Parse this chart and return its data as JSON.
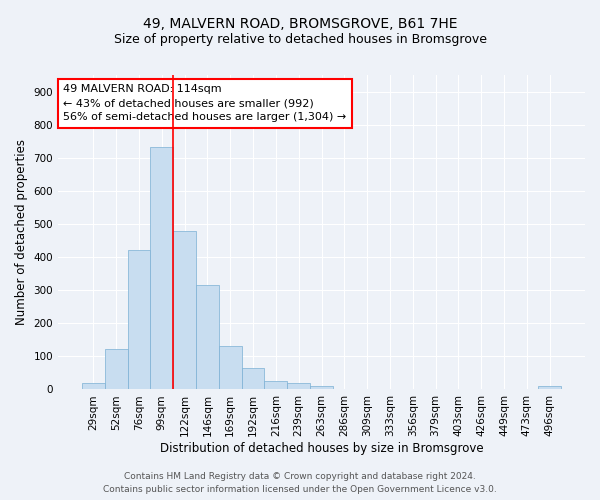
{
  "title": "49, MALVERN ROAD, BROMSGROVE, B61 7HE",
  "subtitle": "Size of property relative to detached houses in Bromsgrove",
  "xlabel": "Distribution of detached houses by size in Bromsgrove",
  "ylabel": "Number of detached properties",
  "bar_color": "#c8ddf0",
  "bar_edge_color": "#7aafd4",
  "categories": [
    "29sqm",
    "52sqm",
    "76sqm",
    "99sqm",
    "122sqm",
    "146sqm",
    "169sqm",
    "192sqm",
    "216sqm",
    "239sqm",
    "263sqm",
    "286sqm",
    "309sqm",
    "333sqm",
    "356sqm",
    "379sqm",
    "403sqm",
    "426sqm",
    "449sqm",
    "473sqm",
    "496sqm"
  ],
  "bar_values": [
    20,
    122,
    420,
    732,
    480,
    315,
    130,
    65,
    25,
    20,
    10,
    0,
    0,
    0,
    0,
    0,
    0,
    0,
    0,
    0,
    10
  ],
  "ylim": [
    0,
    950
  ],
  "yticks": [
    0,
    100,
    200,
    300,
    400,
    500,
    600,
    700,
    800,
    900
  ],
  "property_name": "49 MALVERN ROAD: 114sqm",
  "annotation_line1": "← 43% of detached houses are smaller (992)",
  "annotation_line2": "56% of semi-detached houses are larger (1,304) →",
  "vline_position": 4.0,
  "footer_line1": "Contains HM Land Registry data © Crown copyright and database right 2024.",
  "footer_line2": "Contains public sector information licensed under the Open Government Licence v3.0.",
  "background_color": "#eef2f8",
  "plot_bg_color": "#eef2f8",
  "grid_color": "#ffffff",
  "title_fontsize": 10,
  "subtitle_fontsize": 9,
  "axis_label_fontsize": 8.5,
  "tick_fontsize": 7.5,
  "annotation_fontsize": 8,
  "footer_fontsize": 6.5
}
